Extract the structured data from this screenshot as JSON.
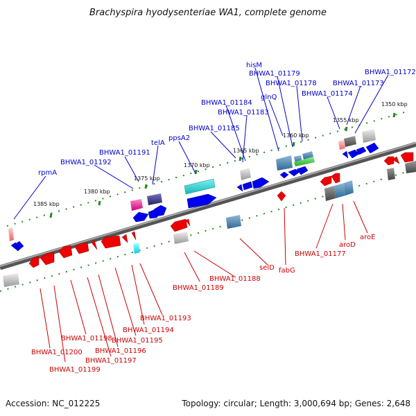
{
  "title": "Brachyspira hyodysenteriae WA1, complete genome",
  "footer": {
    "accession": "Accession: NC_012225",
    "summary": "Topology: circular; Length: 3,000,694 bp; Genes: 2,648"
  },
  "ticks": [
    "1350 kbp",
    "1355 kbp",
    "1360 kbp",
    "1365 kbp",
    "1370 kbp",
    "1375 kbp",
    "1380 kbp",
    "1385 kbp"
  ],
  "forward_labels": [
    "hisM",
    "BHWA1_01179",
    "BHWA1_01178",
    "glnQ",
    "BHWA1_01172",
    "BHWA1_01173",
    "BHWA1_01174",
    "BHWA1_01184",
    "BHWA1_01183",
    "BHWA1_01185",
    "ppsA2",
    "telA",
    "BHWA1_01191",
    "BHWA1_01192",
    "rpmA"
  ],
  "reverse_labels": [
    "aroE",
    "aroD",
    "BHWA1_01177",
    "fabG",
    "selD",
    "BHWA1_01188",
    "BHWA1_01189",
    "BHWA1_01193",
    "BHWA1_01194",
    "BHWA1_01195",
    "BHWA1_01196",
    "BHWA1_01197",
    "BHWA1_01198",
    "BHWA1_01199",
    "BHWA1_01200"
  ],
  "colors": {
    "forward": "#0000ee",
    "reverse": "#ee0000",
    "backbone": "#777777",
    "tick": "#228b22",
    "forward_label": "#0000cc",
    "reverse_label": "#cc0000"
  }
}
